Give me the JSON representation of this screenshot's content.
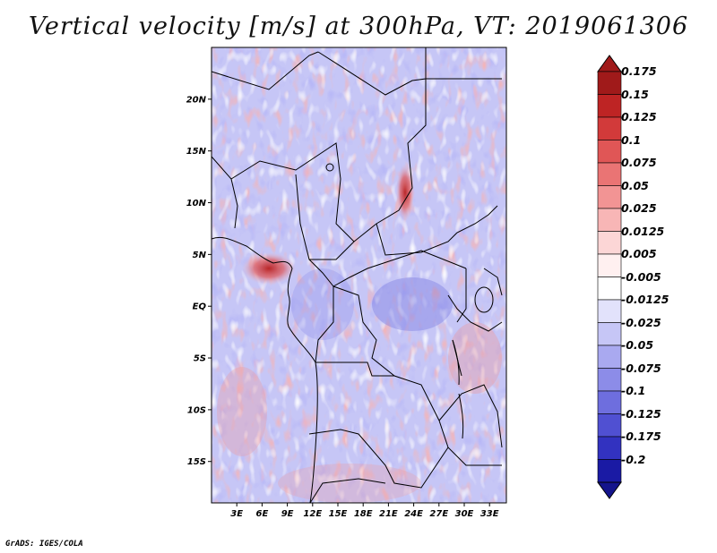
{
  "title": "Vertical velocity [m/s] at 300hPa, VT: 2019061306",
  "credit": "GrADS: IGES/COLA",
  "map": {
    "lon_range": [
      0,
      35
    ],
    "lat_range": [
      -19,
      25
    ],
    "lat_ticks": [
      {
        "lat": 20,
        "label": "20N"
      },
      {
        "lat": 15,
        "label": "15N"
      },
      {
        "lat": 10,
        "label": "10N"
      },
      {
        "lat": 5,
        "label": "5N"
      },
      {
        "lat": 0,
        "label": "EQ"
      },
      {
        "lat": -5,
        "label": "5S"
      },
      {
        "lat": -10,
        "label": "10S"
      },
      {
        "lat": -15,
        "label": "15S"
      }
    ],
    "lon_ticks": [
      {
        "lon": 3,
        "label": "3E"
      },
      {
        "lon": 6,
        "label": "6E"
      },
      {
        "lon": 9,
        "label": "9E"
      },
      {
        "lon": 12,
        "label": "12E"
      },
      {
        "lon": 15,
        "label": "15E"
      },
      {
        "lon": 18,
        "label": "18E"
      },
      {
        "lon": 21,
        "label": "21E"
      },
      {
        "lon": 24,
        "label": "24E"
      },
      {
        "lon": 27,
        "label": "27E"
      },
      {
        "lon": 30,
        "label": "30E"
      },
      {
        "lon": 33,
        "label": "33E"
      }
    ]
  },
  "colorbar": {
    "levels": [
      "0.175",
      "0.15",
      "0.125",
      "0.1",
      "0.075",
      "0.05",
      "0.025",
      "0.0125",
      "0.005",
      "-0.005",
      "-0.0125",
      "-0.025",
      "-0.05",
      "-0.075",
      "-0.1",
      "-0.125",
      "-0.175",
      "-0.2"
    ],
    "colors": [
      "#a01a1a",
      "#be2424",
      "#d23a3a",
      "#e05656",
      "#ea7474",
      "#f29494",
      "#f8b6b6",
      "#fcd6d6",
      "#fff0f0",
      "#ffffff",
      "#e2e2fb",
      "#c6c6f6",
      "#a9a9f0",
      "#8c8ce8",
      "#6e6ede",
      "#5050d2",
      "#3232c0",
      "#1a1aa4"
    ],
    "top_color": "#a01a1a",
    "bottom_color": "#14148c"
  }
}
